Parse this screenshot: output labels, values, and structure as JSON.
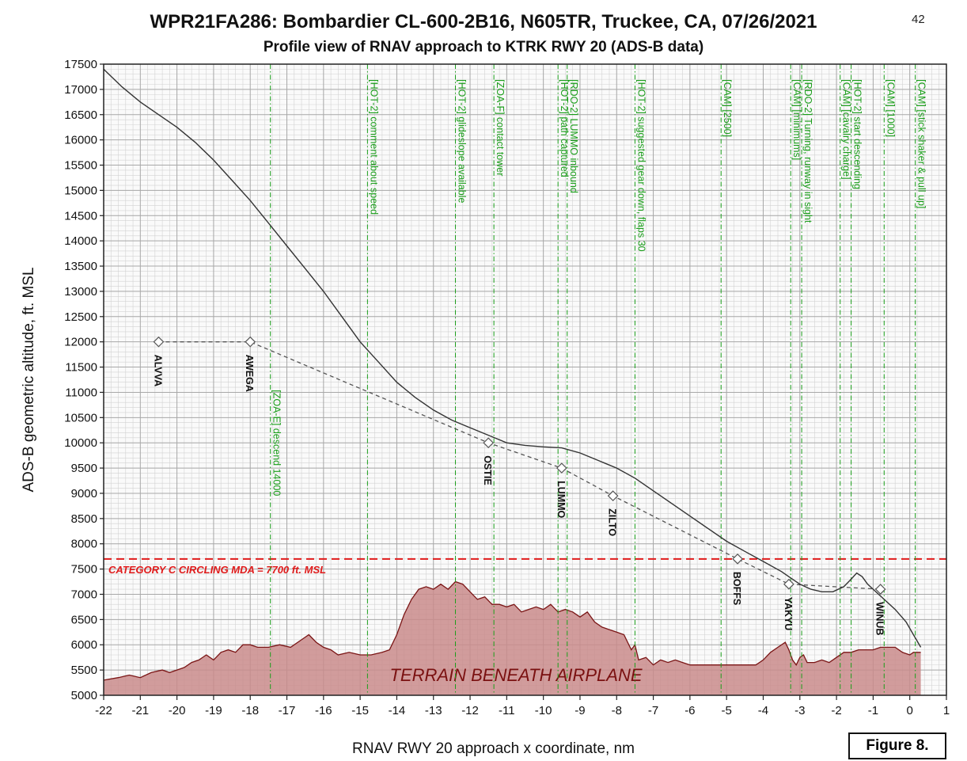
{
  "page_number": "42",
  "figure_label": "Figure 8.",
  "chart_data": {
    "type": "line",
    "title": "WPR21FA286: Bombardier CL-600-2B16, N605TR, Truckee, CA, 07/26/2021",
    "subtitle": "Profile view of RNAV approach to KTRK RWY 20 (ADS-B data)",
    "xlabel": "RNAV RWY 20 approach x coordinate, nm",
    "ylabel": "ADS-B geometric altitude, ft. MSL",
    "xlim": [
      -22,
      1
    ],
    "ylim": [
      5000,
      17500
    ],
    "x_ticks": [
      -22,
      -21,
      -20,
      -19,
      -18,
      -17,
      -16,
      -15,
      -14,
      -13,
      -12,
      -11,
      -10,
      -9,
      -8,
      -7,
      -6,
      -5,
      -4,
      -3,
      -2,
      -1,
      0,
      1
    ],
    "y_ticks": [
      5000,
      5500,
      6000,
      6500,
      7000,
      7500,
      8000,
      8500,
      9000,
      9500,
      10000,
      10500,
      11000,
      11500,
      12000,
      12500,
      13000,
      13500,
      14000,
      14500,
      15000,
      15500,
      16000,
      16500,
      17000,
      17500
    ],
    "grid": true,
    "colors": {
      "airplane": "#333333",
      "profile": "#555555",
      "events": "#1a9e1a",
      "mda": "#e01b1b",
      "terrain_fill": "#c98b8b",
      "terrain_line": "#7a1515",
      "terrain_label": "#7a1010"
    },
    "airplane_track": {
      "x": [
        -22.0,
        -21.5,
        -21.0,
        -20.5,
        -20.0,
        -19.5,
        -19.0,
        -18.5,
        -18.0,
        -17.5,
        -17.0,
        -16.5,
        -16.0,
        -15.5,
        -15.0,
        -14.5,
        -14.0,
        -13.5,
        -13.0,
        -12.5,
        -12.0,
        -11.5,
        -11.0,
        -10.5,
        -10.0,
        -9.5,
        -9.0,
        -8.5,
        -8.0,
        -7.5,
        -7.0,
        -6.5,
        -6.0,
        -5.5,
        -5.0,
        -4.5,
        -4.0,
        -3.5,
        -3.2,
        -3.0,
        -2.7,
        -2.4,
        -2.1,
        -1.8,
        -1.6,
        -1.45,
        -1.3,
        -1.15,
        -1.0,
        -0.7,
        -0.4,
        -0.1,
        0.1,
        0.3
      ],
      "y": [
        17400,
        17050,
        16750,
        16500,
        16250,
        15950,
        15600,
        15200,
        14800,
        14350,
        13900,
        13450,
        13000,
        12500,
        12000,
        11600,
        11200,
        10900,
        10650,
        10450,
        10300,
        10150,
        10000,
        9950,
        9920,
        9900,
        9800,
        9650,
        9500,
        9300,
        9050,
        8800,
        8550,
        8300,
        8050,
        7850,
        7650,
        7450,
        7300,
        7200,
        7100,
        7050,
        7050,
        7150,
        7300,
        7420,
        7350,
        7200,
        7100,
        6900,
        6700,
        6450,
        6200,
        5950
      ]
    },
    "profile": {
      "x": [
        -20.5,
        -18.0,
        -11.5,
        -9.5,
        -8.1,
        -4.7,
        -3.3,
        -0.8
      ],
      "y": [
        12000,
        12000,
        10000,
        9500,
        8950,
        7700,
        7200,
        7100
      ]
    },
    "waypoints": [
      {
        "name": "ALVVA",
        "x": -20.5,
        "altitude": 12000
      },
      {
        "name": "AWEGA",
        "x": -18.0,
        "altitude": 12000
      },
      {
        "name": "OSTIE",
        "x": -11.5,
        "altitude": 10000
      },
      {
        "name": "LUMMO",
        "x": -9.5,
        "altitude": 9500
      },
      {
        "name": "ZILTO",
        "x": -8.1,
        "altitude": 8950
      },
      {
        "name": "BOFFS",
        "x": -4.7,
        "altitude": 7700
      },
      {
        "name": "YAKYU",
        "x": -3.3,
        "altitude": 7200
      },
      {
        "name": "WINUB",
        "x": -0.8,
        "altitude": 7100
      }
    ],
    "events": [
      {
        "x": -17.45,
        "label": "[ZOA-E] descend 14000",
        "label_top_alt": 11050
      },
      {
        "x": -14.8,
        "label": "[HOT-2] comment about speed",
        "label_top_alt": 17200
      },
      {
        "x": -12.4,
        "label": "[HOT-2] glideslope available",
        "label_top_alt": 17200
      },
      {
        "x": -11.35,
        "label": "[ZOA-F] contact tower",
        "label_top_alt": 17200
      },
      {
        "x": -9.6,
        "label": "[HOT-2] path captured",
        "label_top_alt": 17200
      },
      {
        "x": -9.35,
        "label": "[RDO-2] LUMMO inbound",
        "label_top_alt": 17200
      },
      {
        "x": -7.5,
        "label": "[HOT-2] suggested gear down, flaps 30",
        "label_top_alt": 17200
      },
      {
        "x": -5.15,
        "label": "[CAM] [2500]",
        "label_top_alt": 17200
      },
      {
        "x": -3.25,
        "label": "[CAM] [minimums]",
        "label_top_alt": 17200
      },
      {
        "x": -2.95,
        "label": "[RDO-2] Turning, runway in sight",
        "label_top_alt": 17200
      },
      {
        "x": -1.9,
        "label": "[CAM] [cavalry charge]",
        "label_top_alt": 17200
      },
      {
        "x": -1.6,
        "label": "[HOT-2] start descending",
        "label_top_alt": 17200
      },
      {
        "x": -0.7,
        "label": "[CAM] [1000]",
        "label_top_alt": 17200
      },
      {
        "x": 0.15,
        "label": "[CAM] [stick shaker & pull up]",
        "label_top_alt": 17200
      }
    ],
    "mda": {
      "altitude": 7700,
      "label": "CATEGORY C CIRCLING MDA = 7700 ft. MSL"
    },
    "terrain": {
      "label": "TERRAIN BENEATH AIRPLANE",
      "x": [
        -22.0,
        -21.6,
        -21.3,
        -21.0,
        -20.7,
        -20.4,
        -20.2,
        -20.0,
        -19.8,
        -19.6,
        -19.4,
        -19.2,
        -19.0,
        -18.8,
        -18.6,
        -18.4,
        -18.2,
        -18.0,
        -17.8,
        -17.5,
        -17.2,
        -16.9,
        -16.6,
        -16.4,
        -16.2,
        -16.0,
        -15.8,
        -15.6,
        -15.3,
        -15.0,
        -14.7,
        -14.4,
        -14.2,
        -14.0,
        -13.8,
        -13.6,
        -13.4,
        -13.2,
        -13.0,
        -12.8,
        -12.6,
        -12.4,
        -12.2,
        -12.0,
        -11.8,
        -11.6,
        -11.4,
        -11.2,
        -11.0,
        -10.8,
        -10.6,
        -10.4,
        -10.2,
        -10.0,
        -9.8,
        -9.6,
        -9.4,
        -9.2,
        -9.0,
        -8.8,
        -8.6,
        -8.4,
        -8.2,
        -8.0,
        -7.8,
        -7.6,
        -7.5,
        -7.4,
        -7.2,
        -7.0,
        -6.8,
        -6.6,
        -6.4,
        -6.2,
        -6.0,
        -5.8,
        -5.5,
        -5.2,
        -5.0,
        -4.8,
        -4.5,
        -4.2,
        -4.0,
        -3.8,
        -3.6,
        -3.4,
        -3.3,
        -3.2,
        -3.1,
        -3.0,
        -2.9,
        -2.8,
        -2.6,
        -2.4,
        -2.2,
        -2.0,
        -1.8,
        -1.6,
        -1.4,
        -1.2,
        -1.0,
        -0.8,
        -0.6,
        -0.4,
        -0.2,
        0.0,
        0.1,
        0.3
      ],
      "y": [
        5300,
        5350,
        5400,
        5350,
        5450,
        5500,
        5450,
        5500,
        5550,
        5650,
        5700,
        5800,
        5700,
        5850,
        5900,
        5850,
        6000,
        6000,
        5950,
        5950,
        6000,
        5950,
        6100,
        6200,
        6050,
        5950,
        5900,
        5800,
        5850,
        5800,
        5800,
        5850,
        5900,
        6200,
        6600,
        6900,
        7100,
        7150,
        7100,
        7200,
        7100,
        7250,
        7200,
        7050,
        6900,
        6950,
        6800,
        6800,
        6750,
        6800,
        6650,
        6700,
        6750,
        6700,
        6800,
        6650,
        6700,
        6650,
        6550,
        6650,
        6450,
        6350,
        6300,
        6250,
        6200,
        5900,
        6000,
        5700,
        5750,
        5600,
        5700,
        5650,
        5700,
        5650,
        5600,
        5600,
        5600,
        5600,
        5600,
        5600,
        5600,
        5600,
        5700,
        5850,
        5950,
        6050,
        5900,
        5700,
        5600,
        5750,
        5800,
        5650,
        5650,
        5700,
        5650,
        5750,
        5850,
        5850,
        5900,
        5900,
        5900,
        5950,
        5950,
        5950,
        5850,
        5800,
        5850,
        5850
      ]
    }
  }
}
